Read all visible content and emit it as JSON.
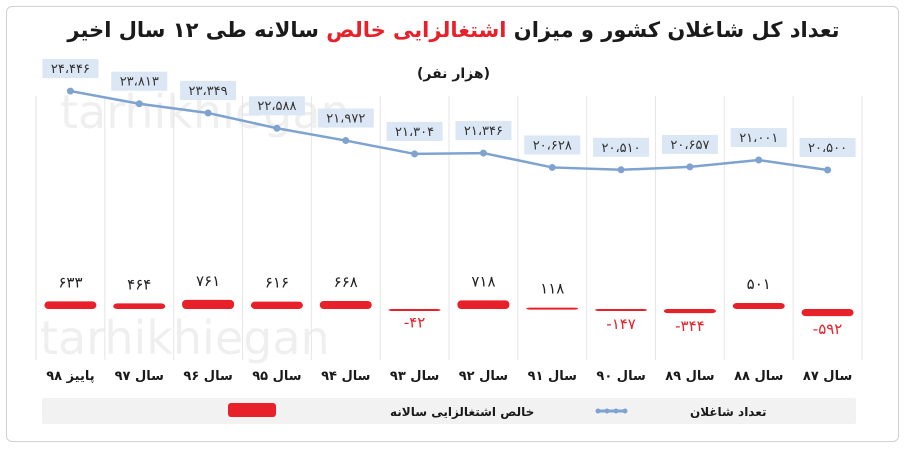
{
  "title_main": "تعداد کل شاغلان کشور و میزان ",
  "title_highlight": "اشتغالزایی خالص",
  "title_tail": " سالانه طی ۱۲ سال اخیر",
  "subtitle": "(هزار نفر)",
  "watermark": "tarhikhiegan",
  "colors": {
    "line": "#7ea3d1",
    "bar": "#e8202a",
    "label_box": "#dbe7f4",
    "legend_bg": "#f2f2f2"
  },
  "chart_data": {
    "type": "bar",
    "categories": [
      "سال ۸۷",
      "سال ۸۸",
      "سال ۸۹",
      "سال ۹۰",
      "سال ۹۱",
      "سال ۹۲",
      "سال ۹۳",
      "سال ۹۴",
      "سال ۹۵",
      "سال ۹۶",
      "سال ۹۷",
      "پاییز ۹۸"
    ],
    "series": [
      {
        "name": "خالص اشتغالزایی سالانه",
        "type": "bar",
        "values": [
          -592,
          501,
          -344,
          -147,
          118,
          718,
          -42,
          668,
          616,
          761,
          464,
          633
        ],
        "labels": [
          "-۵۹۲",
          "۵۰۱",
          "-۳۴۴",
          "-۱۴۷",
          "۱۱۸",
          "۷۱۸",
          "-۴۲",
          "۶۶۸",
          "۶۱۶",
          "۷۶۱",
          "۴۶۴",
          "۶۳۳"
        ]
      },
      {
        "name": "تعداد شاغلان",
        "type": "line",
        "values": [
          20500,
          21001,
          20657,
          20510,
          20628,
          21346,
          21304,
          21972,
          22588,
          23349,
          23813,
          24446
        ],
        "labels": [
          "۲۰،۵۰۰",
          "۲۱،۰۰۱",
          "۲۰،۶۵۷",
          "۲۰،۵۱۰",
          "۲۰،۶۲۸",
          "۲۱،۳۴۶",
          "۲۱،۳۰۴",
          "۲۱،۹۷۲",
          "۲۲،۵۸۸",
          "۲۳،۳۴۹",
          "۲۳،۸۱۳",
          "۲۴،۴۴۶"
        ]
      }
    ],
    "legend_position": "bottom",
    "grid": false
  }
}
